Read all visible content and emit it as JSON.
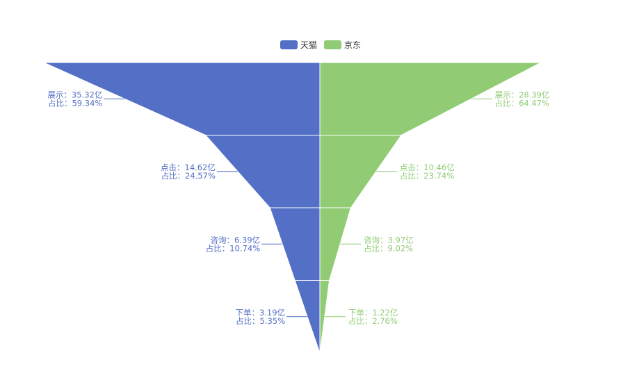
{
  "chart_data": {
    "type": "funnel",
    "legend_placement": "top-center",
    "categories": [
      "展示",
      "点击",
      "咨询",
      "下单"
    ],
    "value_unit": "亿",
    "series": [
      {
        "name": "天猫",
        "color": "#5470c6",
        "side": "left",
        "values": [
          35.32,
          14.62,
          6.39,
          3.19
        ],
        "percents": [
          "59.34%",
          "24.57%",
          "10.74%",
          "5.35%"
        ],
        "labels": [
          {
            "value_line": "展示：35.32亿",
            "percent_line": "占比：59.34%"
          },
          {
            "value_line": "点击：14.62亿",
            "percent_line": "占比：24.57%"
          },
          {
            "value_line": "咨询：6.39亿",
            "percent_line": "占比：10.74%"
          },
          {
            "value_line": "下单：3.19亿",
            "percent_line": "占比：5.35%"
          }
        ]
      },
      {
        "name": "京东",
        "color": "#91cc75",
        "side": "right",
        "values": [
          28.39,
          10.46,
          3.97,
          1.22
        ],
        "percents": [
          "64.47%",
          "23.74%",
          "9.02%",
          "2.76%"
        ],
        "labels": [
          {
            "value_line": "展示：28.39亿",
            "percent_line": "占比：64.47%"
          },
          {
            "value_line": "点击：10.46亿",
            "percent_line": "占比：23.74%"
          },
          {
            "value_line": "咨询：3.97亿",
            "percent_line": "占比：9.02%"
          },
          {
            "value_line": "下单：1.22亿",
            "percent_line": "占比：2.76%"
          }
        ]
      }
    ]
  }
}
